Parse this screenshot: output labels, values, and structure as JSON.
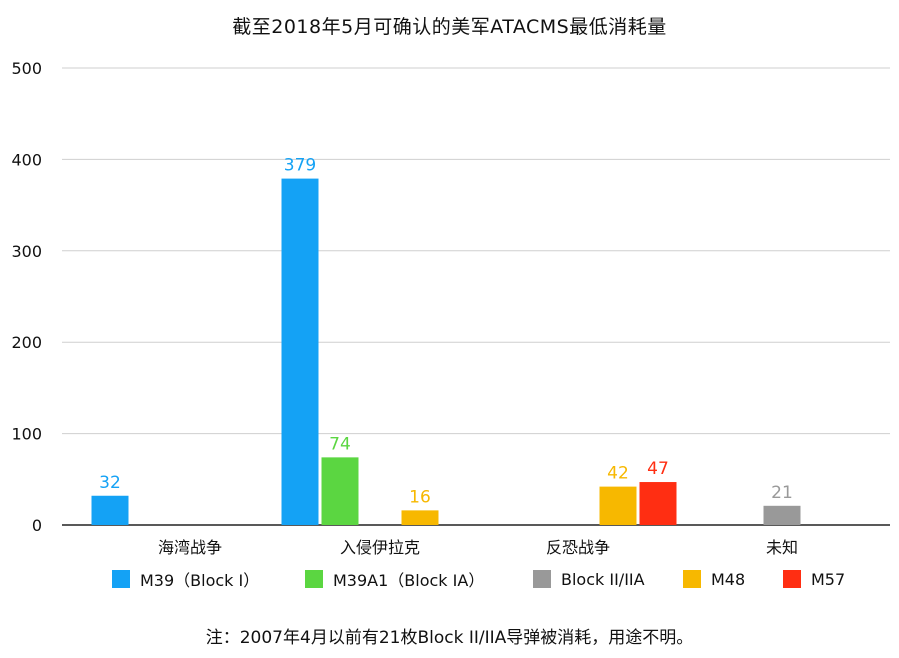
{
  "chart_data": {
    "type": "bar",
    "title": "截至2018年5月可确认的美军ATACMS最低消耗量",
    "categories": [
      "海湾战争",
      "入侵伊拉克",
      "反恐战争",
      "未知"
    ],
    "ylim": [
      0,
      500
    ],
    "yticks": [
      0,
      100,
      200,
      300,
      400,
      500
    ],
    "grid": true,
    "legend_position": "bottom",
    "series": [
      {
        "name": "M39（Block I）",
        "color": "#14a2f5",
        "values": [
          32,
          379,
          null,
          null
        ]
      },
      {
        "name": "M39A1（Block IA）",
        "color": "#5bd641",
        "values": [
          null,
          74,
          null,
          null
        ]
      },
      {
        "name": "Block II/IIA",
        "color": "#999999",
        "values": [
          null,
          null,
          null,
          21
        ]
      },
      {
        "name": "M48",
        "color": "#f7b800",
        "values": [
          null,
          16,
          42,
          null
        ]
      },
      {
        "name": "M57",
        "color": "#ff2e12",
        "values": [
          null,
          null,
          47,
          null
        ]
      }
    ],
    "footnote": "注：2007年4月以前有21枚Block II/IIA导弹被消耗，用途不明。"
  }
}
